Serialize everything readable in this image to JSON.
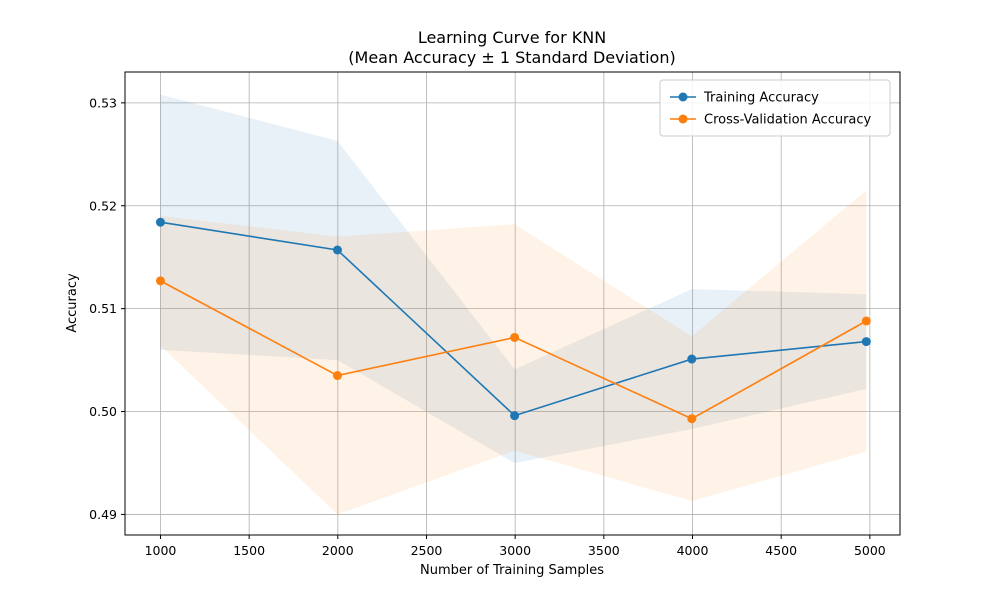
{
  "chart_data": {
    "type": "line",
    "title": "Learning Curve for KNN",
    "subtitle": "(Mean Accuracy ± 1 Standard Deviation)",
    "xlabel": "Number of Training Samples",
    "ylabel": "Accuracy",
    "xlim": [
      800,
      5170
    ],
    "ylim": [
      0.488,
      0.533
    ],
    "xticks": [
      1000,
      1500,
      2000,
      2500,
      3000,
      3500,
      4000,
      4500,
      5000
    ],
    "yticks": [
      0.49,
      0.5,
      0.51,
      0.52,
      0.53
    ],
    "ytick_labels": [
      "0.49",
      "0.50",
      "0.51",
      "0.52",
      "0.53"
    ],
    "grid": true,
    "legend_position": "top-right",
    "x": [
      1000,
      1998,
      2997,
      3996,
      4980
    ],
    "series": [
      {
        "name": "Training Accuracy",
        "color": "#1f77b4",
        "values": [
          0.5184,
          0.5157,
          0.4996,
          0.5051,
          0.5068
        ],
        "std_upper": [
          0.5308,
          0.5263,
          0.5041,
          0.5119,
          0.5114
        ],
        "std_lower": [
          0.506,
          0.505,
          0.495,
          0.4983,
          0.5022
        ]
      },
      {
        "name": "Cross-Validation Accuracy",
        "color": "#ff7f0e",
        "values": [
          0.5127,
          0.5035,
          0.5072,
          0.4993,
          0.5088
        ],
        "std_upper": [
          0.519,
          0.517,
          0.5182,
          0.5073,
          0.5215
        ],
        "std_lower": [
          0.5064,
          0.49,
          0.4962,
          0.4913,
          0.4961
        ]
      }
    ]
  }
}
